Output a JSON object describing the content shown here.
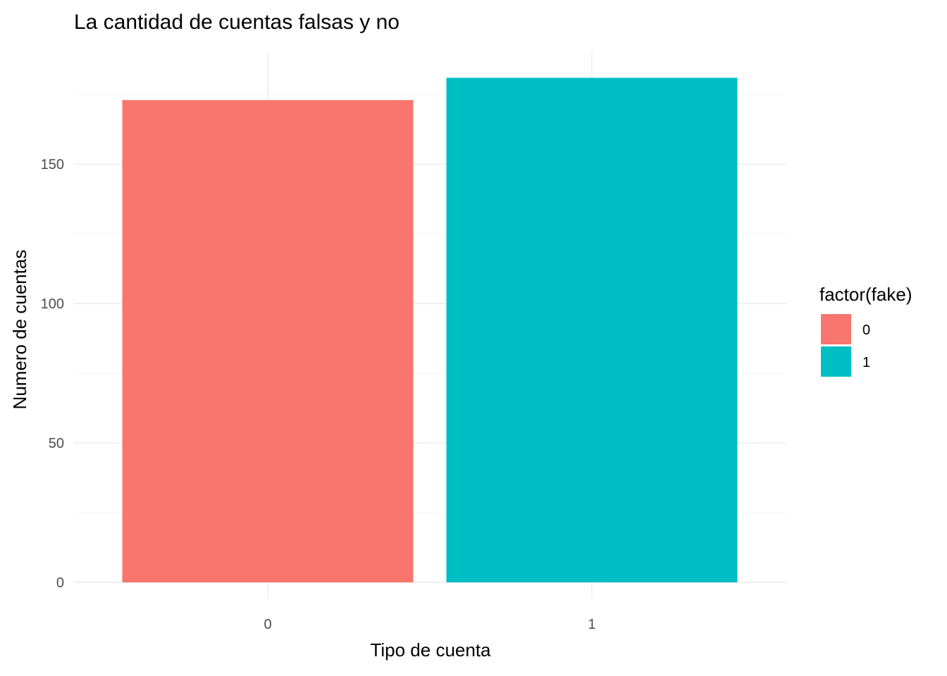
{
  "chart_data": {
    "type": "bar",
    "title": "La cantidad de cuentas falsas y no",
    "xlabel": "Tipo de cuenta",
    "ylabel": "Numero de cuentas",
    "categories": [
      "0",
      "1"
    ],
    "values": [
      173,
      181
    ],
    "ylim": [
      0,
      188
    ],
    "yticks": [
      0,
      50,
      100,
      150
    ],
    "ytick_labels": [
      "0",
      "50",
      "100",
      "150"
    ],
    "grid": true,
    "legend": {
      "title": "factor(fake)",
      "position": "right",
      "entries": [
        {
          "label": "0",
          "color": "#F8766D"
        },
        {
          "label": "1",
          "color": "#00BFC4"
        }
      ]
    },
    "colors": [
      "#F8766D",
      "#00BFC4"
    ]
  }
}
